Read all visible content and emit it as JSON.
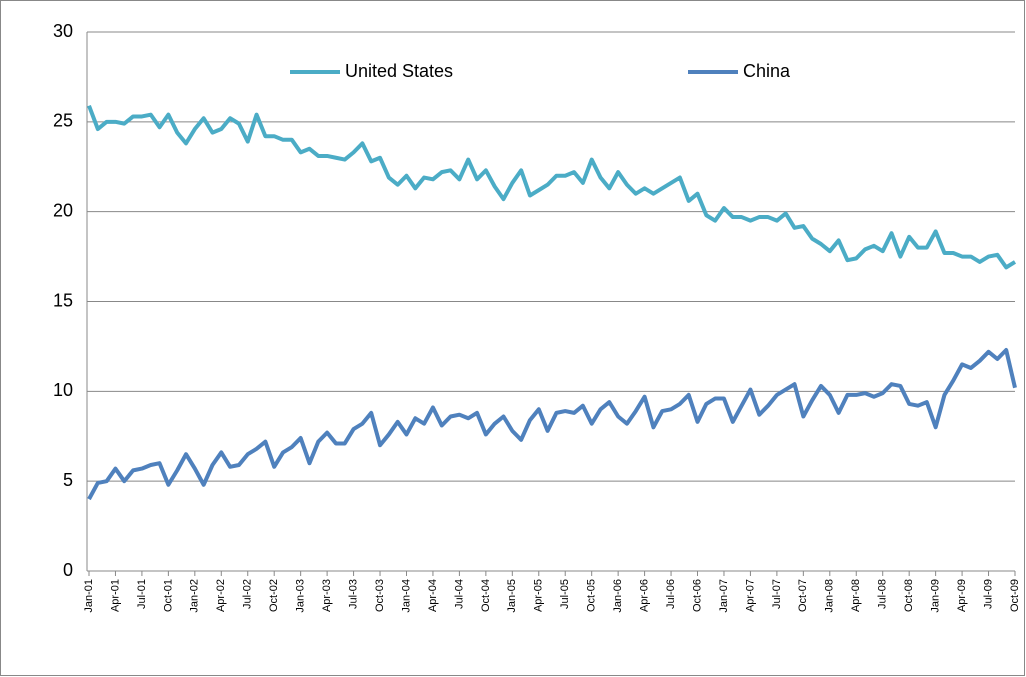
{
  "chart_data": {
    "type": "line",
    "categories": [
      "Jan-01",
      null,
      null,
      "Apr-01",
      null,
      null,
      "Jul-01",
      null,
      null,
      "Oct-01",
      null,
      null,
      "Jan-02",
      null,
      null,
      "Apr-02",
      null,
      null,
      "Jul-02",
      null,
      null,
      "Oct-02",
      null,
      null,
      "Jan-03",
      null,
      null,
      "Apr-03",
      null,
      null,
      "Jul-03",
      null,
      null,
      "Oct-03",
      null,
      null,
      "Jan-04",
      null,
      null,
      "Apr-04",
      null,
      null,
      "Jul-04",
      null,
      null,
      "Oct-04",
      null,
      null,
      "Jan-05",
      null,
      null,
      "Apr-05",
      null,
      null,
      "Jul-05",
      null,
      null,
      "Oct-05",
      null,
      null,
      "Jan-06",
      null,
      null,
      "Apr-06",
      null,
      null,
      "Jul-06",
      null,
      null,
      "Oct-06",
      null,
      null,
      "Jan-07",
      null,
      null,
      "Apr-07",
      null,
      null,
      "Jul-07",
      null,
      null,
      "Oct-07",
      null,
      null,
      "Jan-08",
      null,
      null,
      "Apr-08",
      null,
      null,
      "Jul-08",
      null,
      null,
      "Oct-08",
      null,
      null,
      "Jan-09",
      null,
      null,
      "Apr-09",
      null,
      null,
      "Jul-09",
      null,
      null,
      "Oct-09"
    ],
    "series": [
      {
        "name": "United States",
        "color": "#4bacc6",
        "values": [
          25.9,
          24.6,
          25.0,
          25.0,
          24.9,
          25.3,
          25.3,
          25.4,
          24.7,
          25.4,
          24.4,
          23.8,
          24.6,
          25.2,
          24.4,
          24.6,
          25.2,
          24.9,
          23.9,
          25.4,
          24.2,
          24.2,
          24.0,
          24.0,
          23.3,
          23.5,
          23.1,
          23.1,
          23.0,
          22.9,
          23.3,
          23.8,
          22.8,
          23.0,
          21.9,
          21.5,
          22.0,
          21.3,
          21.9,
          21.8,
          22.2,
          22.3,
          21.8,
          22.9,
          21.8,
          22.3,
          21.4,
          20.7,
          21.6,
          22.3,
          20.9,
          21.2,
          21.5,
          22.0,
          22.0,
          22.2,
          21.6,
          22.9,
          21.9,
          21.3,
          22.2,
          21.5,
          21.0,
          21.3,
          21.0,
          21.3,
          21.6,
          21.9,
          20.6,
          21.0,
          19.8,
          19.5,
          20.2,
          19.7,
          19.7,
          19.5,
          19.7,
          19.7,
          19.5,
          19.9,
          19.1,
          19.2,
          18.5,
          18.2,
          17.8,
          18.4,
          17.3,
          17.4,
          17.9,
          18.1,
          17.8,
          18.8,
          17.5,
          18.6,
          18.0,
          18.0,
          18.9,
          17.7,
          17.7,
          17.5,
          17.5,
          17.2,
          17.5,
          17.6,
          16.9,
          17.2
        ]
      },
      {
        "name": "China",
        "color": "#4f81bd",
        "values": [
          4.0,
          4.9,
          5.0,
          5.7,
          5.0,
          5.6,
          5.7,
          5.9,
          6.0,
          4.8,
          5.6,
          6.5,
          5.7,
          4.8,
          5.9,
          6.6,
          5.8,
          5.9,
          6.5,
          6.8,
          7.2,
          5.8,
          6.6,
          6.9,
          7.4,
          6.0,
          7.2,
          7.7,
          7.1,
          7.1,
          7.9,
          8.2,
          8.8,
          7.0,
          7.6,
          8.3,
          7.6,
          8.5,
          8.2,
          9.1,
          8.1,
          8.6,
          8.7,
          8.5,
          8.8,
          7.6,
          8.2,
          8.6,
          7.8,
          7.3,
          8.4,
          9.0,
          7.8,
          8.8,
          8.9,
          8.8,
          9.2,
          8.2,
          9.0,
          9.4,
          8.6,
          8.2,
          8.9,
          9.7,
          8.0,
          8.9,
          9.0,
          9.3,
          9.8,
          8.3,
          9.3,
          9.6,
          9.6,
          8.3,
          9.2,
          10.1,
          8.7,
          9.2,
          9.8,
          10.1,
          10.4,
          8.6,
          9.5,
          10.3,
          9.8,
          8.8,
          9.8,
          9.8,
          9.9,
          9.7,
          9.9,
          10.4,
          10.3,
          9.3,
          9.2,
          9.4,
          8.0,
          9.8,
          10.6,
          11.5,
          11.3,
          11.7,
          12.2,
          11.8,
          12.3,
          10.2
        ]
      }
    ],
    "ylim": [
      0,
      30
    ],
    "yticks": [
      0,
      5,
      10,
      15,
      20,
      25,
      30
    ],
    "grid": true,
    "legend": "top"
  }
}
